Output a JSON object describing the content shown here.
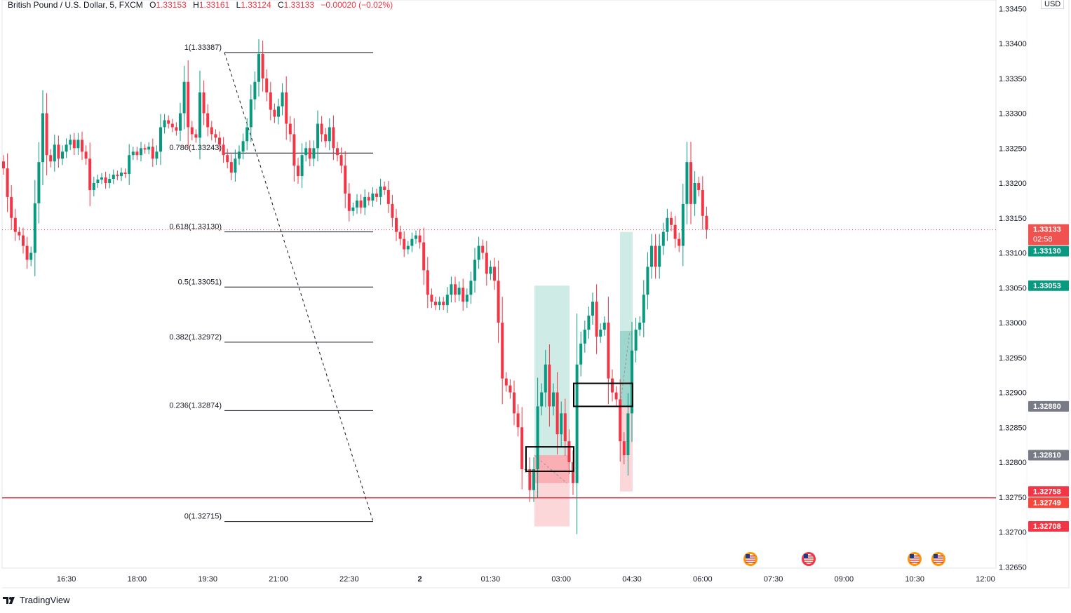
{
  "header": {
    "symbol": "British Pound / U.S. Dollar, 5, FXCM",
    "open_label": "O",
    "open": "1.33153",
    "high_label": "H",
    "high": "1.33161",
    "low_label": "L",
    "low": "1.33124",
    "close_label": "C",
    "close": "1.33133",
    "change": "−0.00020 (−0.02%)"
  },
  "currency": "USD",
  "brand": "TradingView",
  "colors": {
    "up": "#089981",
    "down": "#f23645",
    "grid_border": "#e0e3eb",
    "gray_badge": "#787b86"
  },
  "chart_data": {
    "type": "candlestick",
    "interval": "5",
    "closes": [
      1.33221,
      1.3318,
      1.3315,
      1.3313,
      1.33125,
      1.3311,
      1.3309,
      1.331,
      1.33171,
      1.3323,
      1.333,
      1.3324,
      1.33231,
      1.33255,
      1.33235,
      1.33245,
      1.33255,
      1.33262,
      1.3325,
      1.33262,
      1.33245,
      1.33235,
      1.3319,
      1.332,
      1.33205,
      1.33208,
      1.332,
      1.33206,
      1.33212,
      1.3321,
      1.33215,
      1.33213,
      1.3324,
      1.33245,
      1.3324,
      1.3325,
      1.33248,
      1.33252,
      1.33235,
      1.33245,
      1.3328,
      1.3329,
      1.33285,
      1.3328,
      1.33275,
      1.333,
      1.33345,
      1.3328,
      1.3327,
      1.33265,
      1.3333,
      1.333,
      1.3328,
      1.3327,
      1.33265,
      1.33255,
      1.3324,
      1.3323,
      1.33215,
      1.33235,
      1.33245,
      1.3326,
      1.3328,
      1.3332,
      1.33345,
      1.33385,
      1.3335,
      1.3333,
      1.33305,
      1.33295,
      1.3331,
      1.3333,
      1.33285,
      1.3327,
      1.33225,
      1.3321,
      1.3324,
      1.3325,
      1.33235,
      1.3325,
      1.33285,
      1.3327,
      1.3326,
      1.3328,
      1.3325,
      1.3324,
      1.33225,
      1.33185,
      1.3316,
      1.33165,
      1.33175,
      1.33165,
      1.3318,
      1.33175,
      1.33185,
      1.3318,
      1.33195,
      1.3319,
      1.3317,
      1.3315,
      1.3313,
      1.3312,
      1.33105,
      1.3311,
      1.3312,
      1.33125,
      1.33115,
      1.33075,
      1.3304,
      1.3303,
      1.33025,
      1.3303,
      1.33025,
      1.3304,
      1.33055,
      1.3304,
      1.3305,
      1.3303,
      1.3304,
      1.3306,
      1.3309,
      1.3311,
      1.331,
      1.3307,
      1.3308,
      1.3306,
      1.33,
      1.3292,
      1.3291,
      1.329,
      1.3287,
      1.3285,
      1.3279,
      1.3279,
      1.3276,
      1.3279,
      1.3288,
      1.329,
      1.3294,
      1.3288,
      1.329,
      1.3284,
      1.3287,
      1.3283,
      1.328,
      1.3277,
      1.3294,
      1.3297,
      1.3299,
      1.3301,
      1.3303,
      1.3298,
      1.3299,
      1.33,
      1.3292,
      1.329,
      1.3289,
      1.3283,
      1.3281,
      1.3287,
      1.3296,
      1.3299,
      1.33,
      1.3304,
      1.3308,
      1.3311,
      1.3308,
      1.3311,
      1.3313,
      1.3315,
      1.3314,
      1.3312,
      1.3311,
      1.3317,
      1.3323,
      1.3317,
      1.332,
      1.3319,
      1.33153,
      1.33133
    ],
    "time_ticks": [
      "16:30",
      "18:00",
      "19:30",
      "21:00",
      "22:30",
      "2",
      "01:30",
      "03:00",
      "04:30",
      "06:00",
      "07:30",
      "09:00",
      "10:30",
      "12:00"
    ],
    "price_ticks": [
      "1.33450",
      "1.33400",
      "1.33350",
      "1.33300",
      "1.33250",
      "1.33200",
      "1.33150",
      "1.33100",
      "1.33050",
      "1.33000",
      "1.32950",
      "1.32900",
      "1.32850",
      "1.32800",
      "1.32750",
      "1.32700",
      "1.32650"
    ],
    "fib_levels": [
      {
        "label": "1(1.33387)",
        "price": 1.33387
      },
      {
        "label": "0.786(1.33243)",
        "price": 1.33243
      },
      {
        "label": "0.618(1.33130)",
        "price": 1.3313
      },
      {
        "label": "0.5(1.33051)",
        "price": 1.33051
      },
      {
        "label": "0.382(1.32972)",
        "price": 1.32972
      },
      {
        "label": "0.236(1.32874)",
        "price": 1.32874
      },
      {
        "label": "0(1.32715)",
        "price": 1.32715
      }
    ],
    "horizontal_line": 1.32749,
    "current_price": 1.33133,
    "positions": [
      {
        "target": 1.33053,
        "entry": 1.3281,
        "stop": 1.32708,
        "last": 1.3277
      },
      {
        "target": 1.3313,
        "entry": 1.3288,
        "stop": 1.32758,
        "last": 1.32988
      }
    ],
    "badges": [
      {
        "text": "1.33133",
        "sub": "02:58",
        "price": 1.33133,
        "color": "#f0534f"
      },
      {
        "text": "1.33130",
        "price": 1.3313,
        "color": "#089981"
      },
      {
        "text": "1.33053",
        "price": 1.33053,
        "color": "#089981"
      },
      {
        "text": "1.32880",
        "price": 1.3288,
        "color": "#787b86"
      },
      {
        "text": "1.32810",
        "price": 1.3281,
        "color": "#787b86"
      },
      {
        "text": "1.32758",
        "price": 1.32758,
        "color": "#f23645"
      },
      {
        "text": "1.32749",
        "price": 1.32749,
        "color": "#f7463c"
      },
      {
        "text": "1.32708",
        "price": 1.32708,
        "color": "#f23645"
      }
    ],
    "events": [
      "us-flag-icon",
      "us-flag-icon",
      "us-flag-icon",
      "us-flag-icon"
    ]
  }
}
